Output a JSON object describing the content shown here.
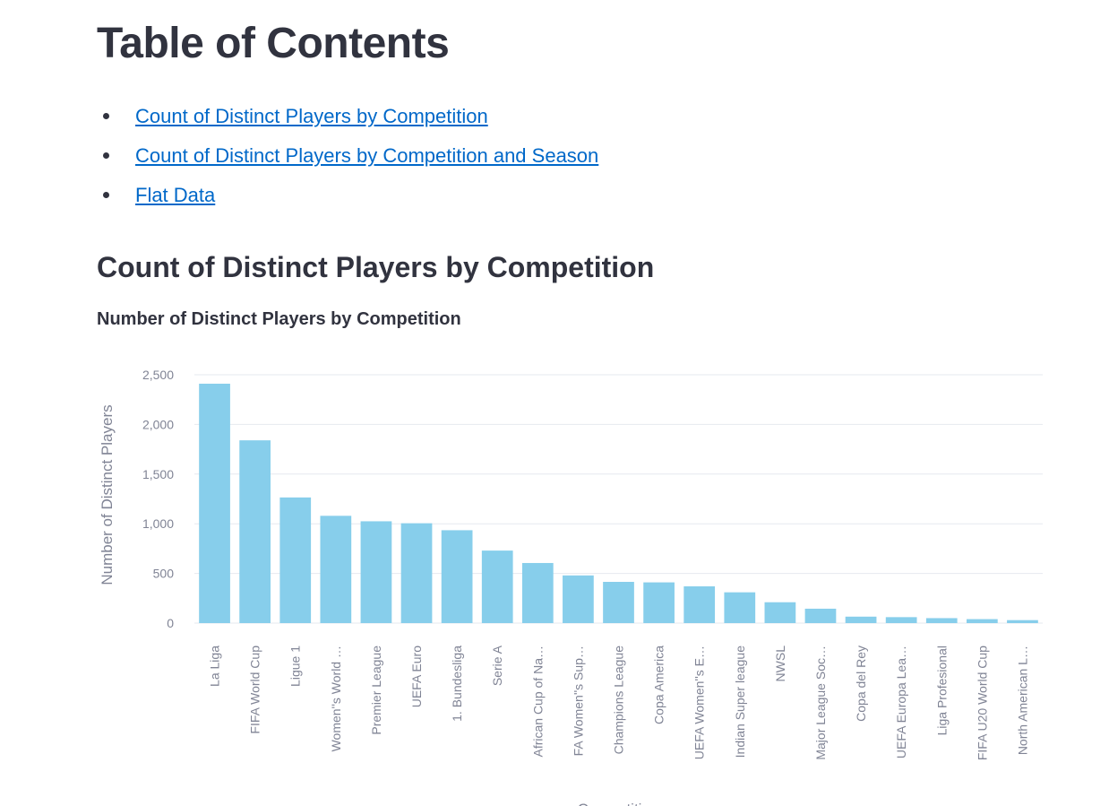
{
  "toc": {
    "title": "Table of Contents",
    "links": [
      "Count of Distinct Players by Competition",
      "Count of Distinct Players by Competition and Season",
      "Flat Data"
    ]
  },
  "section": {
    "title": "Count of Distinct Players by Competition"
  },
  "colors": {
    "bar": "#87ceeb",
    "link": "#0068c9",
    "text": "#31333f",
    "axis_text": "#808495",
    "grid": "#e6e9ef"
  },
  "chart_data": {
    "type": "bar",
    "title": "Number of Distinct Players by Competition",
    "xlabel": "Competition",
    "ylabel": "Number of Distinct Players",
    "ylim": [
      0,
      2500
    ],
    "yticks": [
      0,
      500,
      1000,
      1500,
      2000,
      2500
    ],
    "ytick_labels": [
      "0",
      "500",
      "1,000",
      "1,500",
      "2,000",
      "2,500"
    ],
    "grid": true,
    "categories": [
      "La Liga",
      "FIFA World Cup",
      "Ligue 1",
      "Women''s World …",
      "Premier League",
      "UEFA Euro",
      "1. Bundesliga",
      "Serie A",
      "African Cup of Na…",
      "FA Women''s Sup…",
      "Champions League",
      "Copa America",
      "UEFA Women''s E…",
      "Indian Super league",
      "NWSL",
      "Major League Soc…",
      "Copa del Rey",
      "UEFA Europa Lea…",
      "Liga Profesional",
      "FIFA U20 World Cup",
      "North American L…"
    ],
    "values": [
      2410,
      1840,
      1265,
      1080,
      1025,
      1005,
      935,
      730,
      605,
      480,
      415,
      410,
      370,
      310,
      210,
      145,
      65,
      60,
      50,
      40,
      30
    ]
  }
}
